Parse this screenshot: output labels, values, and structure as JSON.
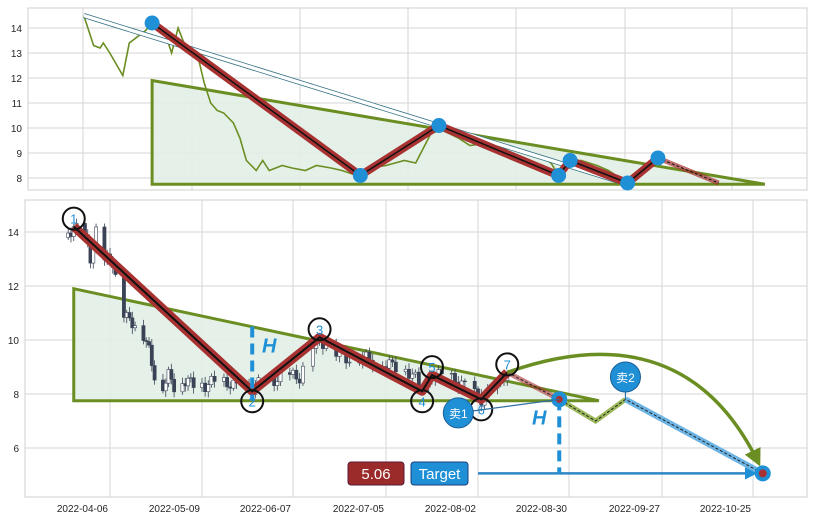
{
  "chart_data": {
    "type": "candlestick-pattern",
    "colors": {
      "zigzag": "#a83232",
      "triangle": "#6b8e23",
      "triangle_fill": "#e2f0e5",
      "accent_blue": "#1f8fd6",
      "price_line": "#6b8e23",
      "candle_down": "#3a4256",
      "label_red": "#9b2a2a"
    },
    "x_ticks": [
      {
        "date": "2022-04-06",
        "label": "2022-04-06"
      },
      {
        "date": "2022-05-09",
        "label": "2022-05-09"
      },
      {
        "date": "2022-06-07",
        "label": "2022-06-07"
      },
      {
        "date": "2022-07-05",
        "label": "2022-07-05"
      },
      {
        "date": "2022-08-02",
        "label": "2022-08-02"
      },
      {
        "date": "2022-08-30",
        "label": "2022-08-30"
      },
      {
        "date": "2022-09-27",
        "label": "2022-09-27"
      },
      {
        "date": "2022-10-25",
        "label": "2022-10-25"
      }
    ],
    "top_panel": {
      "type": "line",
      "yticks": [
        8,
        9,
        10,
        11,
        12,
        13,
        14
      ],
      "ylim": [
        7.6,
        14.8
      ],
      "grid": true
    },
    "bottom_panel": {
      "type": "candlestick",
      "yticks": [
        6,
        8,
        10,
        12,
        14
      ],
      "ylim": [
        4.3,
        15.2
      ],
      "grid": true
    },
    "close": [
      [
        "2022-03-03",
        14.5
      ],
      [
        "2022-03-06",
        13.3
      ],
      [
        "2022-03-08",
        13.2
      ],
      [
        "2022-03-09",
        13.4
      ],
      [
        "2022-03-11",
        13.0
      ],
      [
        "2022-03-15",
        12.1
      ],
      [
        "2022-03-17",
        13.4
      ],
      [
        "2022-03-22",
        13.9
      ],
      [
        "2022-03-24",
        14.2
      ],
      [
        "2022-03-28",
        13.8
      ],
      [
        "2022-03-30",
        13.0
      ],
      [
        "2022-04-01",
        14.0
      ],
      [
        "2022-04-04",
        13.0
      ],
      [
        "2022-04-07",
        12.9
      ],
      [
        "2022-04-09",
        11.8
      ],
      [
        "2022-04-11",
        11.0
      ],
      [
        "2022-04-13",
        10.7
      ],
      [
        "2022-04-15",
        10.6
      ],
      [
        "2022-04-18",
        10.2
      ],
      [
        "2022-04-20",
        9.6
      ],
      [
        "2022-04-22",
        8.7
      ],
      [
        "2022-04-25",
        8.3
      ],
      [
        "2022-04-27",
        8.7
      ],
      [
        "2022-04-29",
        8.3
      ],
      [
        "2022-05-03",
        8.5
      ],
      [
        "2022-05-06",
        8.4
      ],
      [
        "2022-05-10",
        8.3
      ],
      [
        "2022-05-13",
        8.5
      ],
      [
        "2022-05-17",
        8.4
      ],
      [
        "2022-05-20",
        8.3
      ],
      [
        "2022-05-24",
        8.1
      ],
      [
        "2022-05-27",
        8.4
      ],
      [
        "2022-06-01",
        8.5
      ],
      [
        "2022-06-06",
        8.7
      ],
      [
        "2022-06-09",
        8.6
      ],
      [
        "2022-06-13",
        9.8
      ],
      [
        "2022-06-16",
        9.9
      ],
      [
        "2022-06-20",
        9.6
      ],
      [
        "2022-06-23",
        9.3
      ],
      [
        "2022-06-28",
        9.4
      ],
      [
        "2022-07-01",
        9.2
      ],
      [
        "2022-07-06",
        9.1
      ],
      [
        "2022-07-11",
        8.9
      ],
      [
        "2022-07-14",
        8.6
      ],
      [
        "2022-07-16",
        8.1
      ],
      [
        "2022-07-19",
        8.7
      ],
      [
        "2022-07-22",
        8.7
      ],
      [
        "2022-07-26",
        8.5
      ],
      [
        "2022-07-29",
        8.3
      ],
      [
        "2022-08-03",
        7.8
      ],
      [
        "2022-08-08",
        8.3
      ],
      [
        "2022-08-11",
        8.8
      ]
    ],
    "candles_start": "2022-03-22",
    "pivots": [
      {
        "label": "1",
        "date": "2022-03-24",
        "price": 14.2
      },
      {
        "label": "2",
        "date": "2022-05-25",
        "price": 8.1
      },
      {
        "label": "3",
        "date": "2022-06-15",
        "price": 10.1
      },
      {
        "label": "4",
        "date": "2022-07-16",
        "price": 8.1
      },
      {
        "label": "5",
        "date": "2022-07-19",
        "price": 8.7
      },
      {
        "label": "6",
        "date": "2022-08-03",
        "price": 7.8
      },
      {
        "label": "7",
        "date": "2022-08-11",
        "price": 8.8
      }
    ],
    "triangle": {
      "start": "2022-03-24",
      "end": "2022-09-08",
      "top": 11.9,
      "base": 7.75
    },
    "trend_arrow": {
      "from": [
        "2022-03-03",
        14.5
      ],
      "to": [
        "2022-08-01",
        7.85
      ]
    },
    "projection": [
      [
        "2022-08-11",
        8.8
      ],
      [
        "2022-08-27",
        7.8
      ],
      [
        "2022-09-07",
        7.0
      ],
      [
        "2022-09-16",
        7.8
      ],
      [
        "2022-10-28",
        5.06
      ]
    ],
    "height_markers": [
      {
        "label": "H",
        "date": "2022-05-25",
        "from": 10.5,
        "to": 7.75
      },
      {
        "label": "H",
        "date": "2022-08-27",
        "from": 7.8,
        "to": 5.06
      }
    ],
    "sell_points": [
      {
        "label": "卖1",
        "date": "2022-07-27",
        "price": 7.3,
        "target": [
          "2022-08-27",
          7.8
        ]
      },
      {
        "label": "卖2",
        "date": "2022-09-16",
        "price": 8.63,
        "target": [
          "2022-09-16",
          7.8
        ]
      }
    ],
    "target": {
      "label": "Target",
      "value_label": "5.06",
      "price": 5.06,
      "line_from": "2022-08-02",
      "date": "2022-10-28"
    }
  }
}
